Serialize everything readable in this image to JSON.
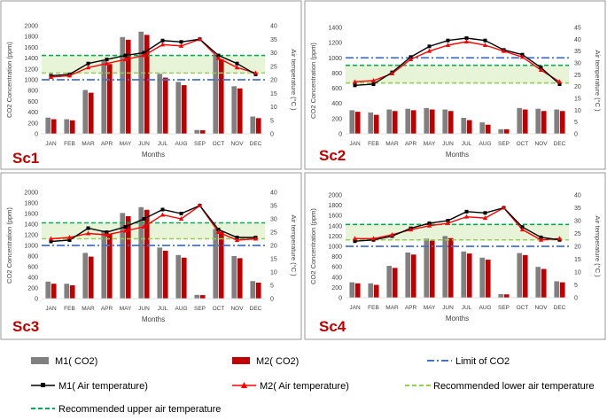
{
  "months": [
    "JAN",
    "FEB",
    "MAR",
    "APR",
    "MAY",
    "JUN",
    "JUL",
    "AUG",
    "SEP",
    "OCT",
    "NOV",
    "DEC"
  ],
  "legend": {
    "m1_co2": "M1( CO2)",
    "m2_co2": "M2( CO2)",
    "limit": "Limit of CO2",
    "m1_temp": "M1( Air temperature)",
    "m2_temp": "M2( Air temperature)",
    "rec_lower": "Recommended lower air temperature",
    "rec_upper": "Recommended upper air temperature"
  },
  "colors": {
    "m1_co2": "#808080",
    "m2_co2": "#c00000",
    "limit": "#4472c4",
    "m1_temp": "#000000",
    "m2_temp": "#ff0000",
    "rec_lower": "#92d050",
    "rec_upper": "#00b050",
    "band": "#e8f4d8"
  },
  "chart_data": [
    {
      "type": "bar+line",
      "label": "Sc1",
      "xlabel": "Months",
      "ylabel": "CO2 Concentration (ppm)",
      "y2label": "Air temperature (°C )",
      "ylim": [
        0,
        2000
      ],
      "yticks": [
        0,
        200,
        400,
        600,
        800,
        1000,
        1200,
        1400,
        1600,
        1800,
        2000
      ],
      "y2lim": [
        0,
        40
      ],
      "y2ticks": [
        0,
        5,
        10,
        15,
        20,
        25,
        30,
        35,
        40
      ],
      "limit_co2": 1000,
      "rec_lower_temp": 22.5,
      "rec_upper_temp": 29,
      "series": [
        {
          "name": "M1( CO2)",
          "kind": "bar",
          "values": [
            300,
            270,
            810,
            1350,
            1790,
            1890,
            1110,
            960,
            70,
            1440,
            880,
            320
          ]
        },
        {
          "name": "M2( CO2)",
          "kind": "bar",
          "values": [
            270,
            250,
            760,
            1290,
            1740,
            1830,
            1040,
            900,
            65,
            1380,
            840,
            290
          ]
        },
        {
          "name": "M1( Air temperature)",
          "kind": "line",
          "values": [
            21.5,
            22,
            26,
            27.5,
            29,
            30,
            34.5,
            34,
            35,
            29,
            26,
            22
          ]
        },
        {
          "name": "M2( Air temperature)",
          "kind": "line",
          "values": [
            21,
            21.5,
            24.5,
            26,
            27.5,
            29,
            33,
            32.5,
            35,
            28,
            24.5,
            22.5
          ]
        }
      ]
    },
    {
      "type": "bar+line",
      "label": "Sc2",
      "xlabel": "Months",
      "ylabel": "CO2 Concentration (ppm)",
      "y2label": "Air temperature (°C )",
      "ylim": [
        0,
        1400
      ],
      "yticks": [
        0,
        200,
        400,
        600,
        800,
        1000,
        1200,
        1400
      ],
      "y2lim": [
        0,
        45
      ],
      "y2ticks": [
        0,
        5,
        10,
        15,
        20,
        25,
        30,
        35,
        40,
        45
      ],
      "limit_co2": 1000,
      "rec_lower_temp": 21.5,
      "rec_upper_temp": 29,
      "series": [
        {
          "name": "M1( CO2)",
          "kind": "bar",
          "values": [
            310,
            280,
            320,
            330,
            340,
            320,
            210,
            150,
            60,
            340,
            330,
            320
          ]
        },
        {
          "name": "M2( CO2)",
          "kind": "bar",
          "values": [
            290,
            250,
            300,
            310,
            320,
            300,
            180,
            120,
            60,
            320,
            300,
            300
          ]
        },
        {
          "name": "M1( Air temperature)",
          "kind": "line",
          "values": [
            20.5,
            21,
            26,
            32.5,
            37,
            39.5,
            40.5,
            39.5,
            35.5,
            33.5,
            28,
            21
          ]
        },
        {
          "name": "M2( Air temperature)",
          "kind": "line",
          "values": [
            22,
            22.5,
            25.5,
            31.5,
            35,
            37.5,
            39,
            37.5,
            35,
            32.5,
            27,
            22
          ]
        }
      ]
    },
    {
      "type": "bar+line",
      "label": "Sc3",
      "xlabel": "Months",
      "ylabel": "CO2 Concentration (ppm)",
      "y2label": "Air temperature (°C )",
      "ylim": [
        0,
        2000
      ],
      "yticks": [
        0,
        200,
        400,
        600,
        800,
        1000,
        1200,
        1400,
        1600,
        1800,
        2000
      ],
      "y2lim": [
        0,
        40
      ],
      "y2ticks": [
        0,
        5,
        10,
        15,
        20,
        25,
        30,
        35,
        40
      ],
      "limit_co2": 1000,
      "rec_lower_temp": 22.5,
      "rec_upper_temp": 28.5,
      "series": [
        {
          "name": "M1( CO2)",
          "kind": "bar",
          "values": [
            320,
            280,
            860,
            1280,
            1610,
            1720,
            960,
            820,
            70,
            1310,
            800,
            330
          ]
        },
        {
          "name": "M2( CO2)",
          "kind": "bar",
          "values": [
            280,
            250,
            790,
            1220,
            1550,
            1670,
            900,
            770,
            65,
            1260,
            760,
            300
          ]
        },
        {
          "name": "M1( Air temperature)",
          "kind": "line",
          "values": [
            21.5,
            22,
            26.5,
            25,
            27,
            30,
            33.5,
            32,
            35,
            26,
            23,
            23
          ]
        },
        {
          "name": "M2( Air temperature)",
          "kind": "line",
          "values": [
            22.5,
            23,
            24.5,
            24,
            25.5,
            27,
            31.5,
            30,
            35,
            25,
            22,
            22.5
          ]
        }
      ]
    },
    {
      "type": "bar+line",
      "label": "Sc4",
      "xlabel": "Months",
      "ylabel": "CO2 Concentration (ppm)",
      "y2label": "Air temperature (°C )",
      "ylim": [
        0,
        2000
      ],
      "yticks": [
        0,
        200,
        400,
        600,
        800,
        1000,
        1200,
        1400,
        1600,
        1800,
        2000
      ],
      "y2lim": [
        0,
        40
      ],
      "y2ticks": [
        0,
        5,
        10,
        15,
        20,
        25,
        30,
        35,
        40
      ],
      "limit_co2": 1000,
      "rec_lower_temp": 22.5,
      "rec_upper_temp": 28.5,
      "series": [
        {
          "name": "M1( CO2)",
          "kind": "bar",
          "values": [
            300,
            280,
            620,
            880,
            1150,
            1200,
            900,
            780,
            70,
            870,
            600,
            320
          ]
        },
        {
          "name": "M2( CO2)",
          "kind": "bar",
          "values": [
            280,
            250,
            580,
            840,
            1110,
            1160,
            860,
            740,
            65,
            830,
            560,
            300
          ]
        },
        {
          "name": "M1( Air temperature)",
          "kind": "line",
          "values": [
            22,
            22.5,
            24,
            27,
            29,
            30,
            33.5,
            33,
            35,
            27.5,
            23.5,
            22.5
          ]
        },
        {
          "name": "M2( Air temperature)",
          "kind": "line",
          "values": [
            23,
            23,
            24.5,
            26.5,
            28,
            29,
            31.5,
            31,
            35,
            26.5,
            22.5,
            23
          ]
        }
      ]
    }
  ]
}
